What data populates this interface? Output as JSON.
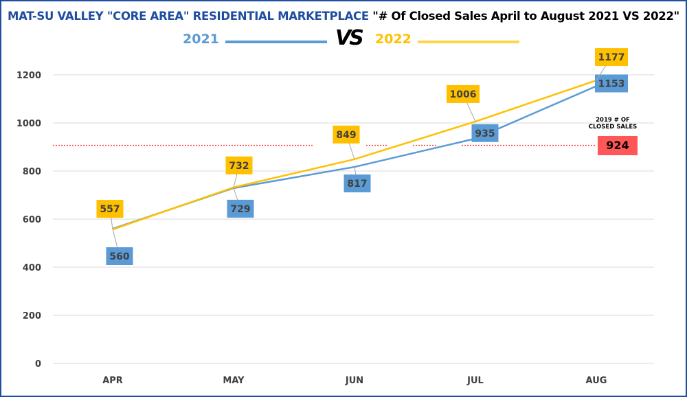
{
  "title": {
    "part1": "MAT-SU VALLEY \"CORE AREA\" RESIDENTIAL MARKETPLACE",
    "part2": "\"# Of Closed Sales April to August 2021 VS 2022\""
  },
  "legend": {
    "left": "2021",
    "vs": "VS",
    "right": "2022"
  },
  "reference": {
    "caption_line1": "2019 # OF",
    "caption_line2": "CLOSED SALES",
    "value": "924",
    "color": "#ff5757"
  },
  "colors": {
    "s2021": "#5b9bd5",
    "s2022": "#ffc000",
    "title_blue": "#1f4ea0"
  },
  "chart_data": {
    "type": "line",
    "categories": [
      "APR",
      "MAY",
      "JUN",
      "JUL",
      "AUG"
    ],
    "series": [
      {
        "name": "2021",
        "values": [
          560,
          729,
          817,
          935,
          1153
        ],
        "color": "#5b9bd5"
      },
      {
        "name": "2022",
        "values": [
          557,
          732,
          849,
          1006,
          1177
        ],
        "color": "#ffc000"
      }
    ],
    "reference_line": {
      "label": "2019 # OF CLOSED SALES",
      "value": 924
    },
    "ylim": [
      0,
      1200
    ],
    "yticks": [
      0,
      200,
      400,
      600,
      800,
      1000,
      1200
    ],
    "grid": true,
    "data_labels": true
  }
}
